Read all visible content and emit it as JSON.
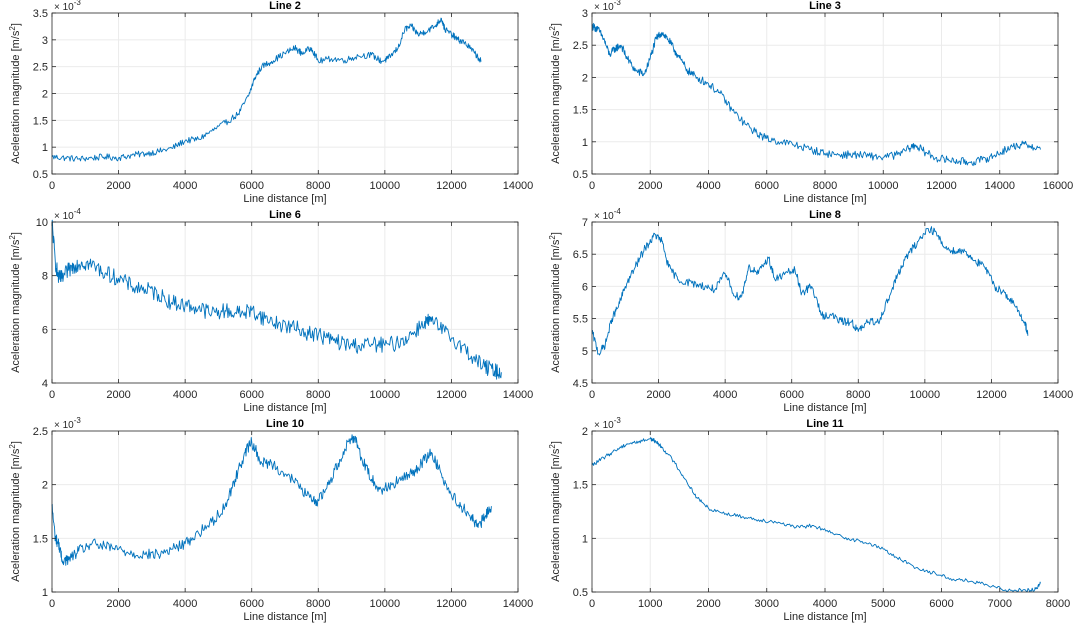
{
  "figure": {
    "background": "#ffffff",
    "line_color": "#0072BD",
    "grid_color": "#ebebeb",
    "axes_color": "#262626"
  },
  "chart_data": [
    {
      "type": "line",
      "title": "Line 2",
      "xlabel": "Line distance [m]",
      "ylabel": "Aceleration magnitude [m/s",
      "ylabel_sup": "2",
      "ylabel_close": "]",
      "exponent_base": "× 10",
      "exponent_power": "-3",
      "xlim": [
        0,
        14000
      ],
      "ylim": [
        0.5,
        3.5
      ],
      "xticks": [
        0,
        2000,
        4000,
        6000,
        8000,
        10000,
        12000,
        14000
      ],
      "yticks": [
        0.5,
        1,
        1.5,
        2,
        2.5,
        3,
        3.5
      ],
      "xtick_labels": [
        "0",
        "2000",
        "4000",
        "6000",
        "8000",
        "10000",
        "12000",
        "14000"
      ],
      "ytick_labels": [
        "0.5",
        "1",
        "1.5",
        "2",
        "2.5",
        "3",
        "3.5"
      ],
      "grid": true,
      "noise": 0.02,
      "series": [
        {
          "x": [
            0,
            400,
            800,
            1200,
            1600,
            2000,
            2400,
            2800,
            3200,
            3600,
            4000,
            4400,
            4800,
            5200,
            5600,
            5900,
            6100,
            6300,
            6600,
            7000,
            7300,
            7500,
            7800,
            8000,
            8400,
            8800,
            9200,
            9600,
            9900,
            10100,
            10400,
            10600,
            10800,
            11000,
            11200,
            11500,
            11700,
            11800,
            12000,
            12200,
            12400,
            12700,
            12900
          ],
          "y": [
            0.82,
            0.8,
            0.78,
            0.8,
            0.82,
            0.8,
            0.85,
            0.88,
            0.92,
            0.98,
            1.12,
            1.15,
            1.3,
            1.45,
            1.62,
            1.95,
            2.3,
            2.5,
            2.6,
            2.75,
            2.85,
            2.75,
            2.85,
            2.6,
            2.65,
            2.62,
            2.7,
            2.72,
            2.6,
            2.65,
            2.85,
            3.2,
            3.25,
            3.1,
            3.15,
            3.25,
            3.4,
            3.2,
            3.1,
            3.0,
            2.95,
            2.75,
            2.6
          ]
        }
      ]
    },
    {
      "type": "line",
      "title": "Line 3",
      "xlabel": "Line distance [m]",
      "ylabel": "Aceleration magnitude [m/s",
      "ylabel_sup": "2",
      "ylabel_close": "]",
      "exponent_base": "× 10",
      "exponent_power": "-3",
      "xlim": [
        0,
        16000
      ],
      "ylim": [
        0.5,
        3.0
      ],
      "xticks": [
        0,
        2000,
        4000,
        6000,
        8000,
        10000,
        12000,
        14000,
        16000
      ],
      "yticks": [
        0.5,
        1,
        1.5,
        2,
        2.5,
        3
      ],
      "xtick_labels": [
        "0",
        "2000",
        "4000",
        "6000",
        "8000",
        "10000",
        "12000",
        "14000",
        "16000"
      ],
      "ytick_labels": [
        "0.5",
        "1",
        "1.5",
        "2",
        "2.5",
        "3"
      ],
      "grid": true,
      "noise": 0.025,
      "series": [
        {
          "x": [
            0,
            200,
            400,
            600,
            800,
            1000,
            1200,
            1500,
            1800,
            2000,
            2200,
            2400,
            2600,
            2800,
            3000,
            3300,
            3600,
            4000,
            4400,
            4800,
            5200,
            5600,
            6000,
            6500,
            7000,
            7500,
            8000,
            8500,
            9000,
            9500,
            10000,
            10500,
            10900,
            11100,
            11400,
            11800,
            12200,
            12600,
            13000,
            13400,
            13800,
            14200,
            14600,
            15000,
            15400
          ],
          "y": [
            2.8,
            2.75,
            2.6,
            2.35,
            2.45,
            2.5,
            2.3,
            2.1,
            2.05,
            2.3,
            2.6,
            2.7,
            2.6,
            2.45,
            2.3,
            2.1,
            2.0,
            1.9,
            1.75,
            1.5,
            1.3,
            1.15,
            1.05,
            1.0,
            0.95,
            0.88,
            0.82,
            0.8,
            0.8,
            0.78,
            0.76,
            0.8,
            0.9,
            0.95,
            0.85,
            0.75,
            0.72,
            0.7,
            0.68,
            0.72,
            0.78,
            0.88,
            0.95,
            0.95,
            0.88
          ]
        }
      ]
    },
    {
      "type": "line",
      "title": "Line 6",
      "xlabel": "Line distance [m]",
      "ylabel": "Aceleration magnitude [m/s",
      "ylabel_sup": "2",
      "ylabel_close": "]",
      "exponent_base": "× 10",
      "exponent_power": "-4",
      "xlim": [
        0,
        14000
      ],
      "ylim": [
        4,
        10
      ],
      "xticks": [
        0,
        2000,
        4000,
        6000,
        8000,
        10000,
        12000,
        14000
      ],
      "yticks": [
        4,
        6,
        8,
        10
      ],
      "xtick_labels": [
        "0",
        "2000",
        "4000",
        "6000",
        "8000",
        "10000",
        "12000",
        "14000"
      ],
      "ytick_labels": [
        "4",
        "6",
        "8",
        "10"
      ],
      "grid": true,
      "noise": 0.05,
      "series": [
        {
          "x": [
            0,
            100,
            200,
            300,
            500,
            700,
            900,
            1200,
            1600,
            2000,
            2400,
            2800,
            3200,
            3600,
            4000,
            4400,
            4800,
            5200,
            5600,
            6000,
            6400,
            6800,
            7200,
            7600,
            8000,
            8400,
            8800,
            9200,
            9600,
            10000,
            10400,
            10800,
            11200,
            11400,
            11800,
            12200,
            12600,
            13000,
            13300,
            13500
          ],
          "y": [
            10,
            8.5,
            7.9,
            7.9,
            8.2,
            8.4,
            8.5,
            8.4,
            8.1,
            7.9,
            7.6,
            7.5,
            7.3,
            7.0,
            6.9,
            6.8,
            6.6,
            6.7,
            6.6,
            6.7,
            6.4,
            6.2,
            6.1,
            5.9,
            5.8,
            5.6,
            5.45,
            5.4,
            5.45,
            5.4,
            5.5,
            5.8,
            6.3,
            6.3,
            5.9,
            5.5,
            5.0,
            4.6,
            4.45,
            4.4
          ]
        }
      ]
    },
    {
      "type": "line",
      "title": "Line 8",
      "xlabel": "Line distance [m]",
      "ylabel": "Aceleration magnitude [m/s",
      "ylabel_sup": "2",
      "ylabel_close": "]",
      "exponent_base": "× 10",
      "exponent_power": "-4",
      "xlim": [
        0,
        14000
      ],
      "ylim": [
        4.5,
        7.0
      ],
      "xticks": [
        0,
        2000,
        4000,
        6000,
        8000,
        10000,
        12000,
        14000
      ],
      "yticks": [
        4.5,
        5,
        5.5,
        6,
        6.5,
        7
      ],
      "xtick_labels": [
        "0",
        "2000",
        "4000",
        "6000",
        "8000",
        "10000",
        "12000",
        "14000"
      ],
      "ytick_labels": [
        "4.5",
        "5",
        "5.5",
        "6",
        "6.5",
        "7"
      ],
      "grid": true,
      "noise": 0.025,
      "series": [
        {
          "x": [
            0,
            200,
            400,
            600,
            800,
            1000,
            1300,
            1600,
            1900,
            2100,
            2300,
            2600,
            3000,
            3400,
            3700,
            4000,
            4300,
            4500,
            4700,
            5000,
            5300,
            5500,
            5800,
            6100,
            6300,
            6600,
            6900,
            7200,
            7500,
            7800,
            8000,
            8300,
            8600,
            8900,
            9200,
            9500,
            9800,
            10100,
            10300,
            10600,
            10900,
            11200,
            11500,
            11800,
            12100,
            12400,
            12700,
            13000,
            13100
          ],
          "y": [
            5.3,
            4.95,
            5.1,
            5.5,
            5.7,
            6.0,
            6.3,
            6.6,
            6.8,
            6.7,
            6.3,
            6.1,
            6.05,
            6.0,
            5.95,
            6.2,
            5.85,
            5.85,
            6.3,
            6.2,
            6.45,
            6.1,
            6.2,
            6.25,
            5.9,
            6.0,
            5.55,
            5.55,
            5.45,
            5.45,
            5.3,
            5.45,
            5.45,
            5.8,
            6.2,
            6.5,
            6.7,
            6.9,
            6.85,
            6.6,
            6.55,
            6.55,
            6.4,
            6.3,
            6.0,
            5.9,
            5.7,
            5.45,
            5.25
          ]
        }
      ]
    },
    {
      "type": "line",
      "title": "Line 10",
      "xlabel": "Line distance [m]",
      "ylabel": "Aceleration magnitude [m/s",
      "ylabel_sup": "2",
      "ylabel_close": "]",
      "exponent_base": "× 10",
      "exponent_power": "-3",
      "xlim": [
        0,
        14000
      ],
      "ylim": [
        1.0,
        2.5
      ],
      "xticks": [
        0,
        2000,
        4000,
        6000,
        8000,
        10000,
        12000,
        14000
      ],
      "yticks": [
        1,
        1.5,
        2,
        2.5
      ],
      "xtick_labels": [
        "0",
        "2000",
        "4000",
        "6000",
        "8000",
        "10000",
        "12000",
        "14000"
      ],
      "ytick_labels": [
        "1",
        "1.5",
        "2",
        "2.5"
      ],
      "grid": true,
      "noise": 0.035,
      "series": [
        {
          "x": [
            0,
            100,
            200,
            300,
            500,
            800,
            1200,
            1600,
            2000,
            2400,
            2800,
            3200,
            3600,
            4000,
            4400,
            4800,
            5200,
            5500,
            5800,
            6000,
            6300,
            6600,
            7000,
            7400,
            7800,
            8000,
            8300,
            8600,
            8900,
            9100,
            9300,
            9600,
            9900,
            10200,
            10500,
            10800,
            11100,
            11400,
            11700,
            12000,
            12300,
            12600,
            12800,
            13000,
            13200
          ],
          "y": [
            1.8,
            1.5,
            1.45,
            1.3,
            1.3,
            1.38,
            1.45,
            1.42,
            1.4,
            1.36,
            1.35,
            1.35,
            1.4,
            1.45,
            1.55,
            1.65,
            1.8,
            2.05,
            2.3,
            2.4,
            2.2,
            2.2,
            2.1,
            2.0,
            1.85,
            1.85,
            2.0,
            2.2,
            2.4,
            2.45,
            2.25,
            2.05,
            1.95,
            2.0,
            2.05,
            2.1,
            2.2,
            2.3,
            2.1,
            1.9,
            1.8,
            1.7,
            1.6,
            1.7,
            1.8
          ]
        }
      ]
    },
    {
      "type": "line",
      "title": "Line 11",
      "xlabel": "Line distance [m]",
      "ylabel": "Aceleration magnitude [m/s",
      "ylabel_sup": "2",
      "ylabel_close": "]",
      "exponent_base": "× 10",
      "exponent_power": "-3",
      "xlim": [
        0,
        8000
      ],
      "ylim": [
        0.5,
        2.0
      ],
      "xticks": [
        0,
        1000,
        2000,
        3000,
        4000,
        5000,
        6000,
        7000,
        8000
      ],
      "yticks": [
        0.5,
        1,
        1.5,
        2
      ],
      "xtick_labels": [
        "0",
        "1000",
        "2000",
        "3000",
        "4000",
        "5000",
        "6000",
        "7000",
        "8000"
      ],
      "ytick_labels": [
        "0.5",
        "1",
        "1.5",
        "2"
      ],
      "grid": true,
      "noise": 0.012,
      "series": [
        {
          "x": [
            0,
            200,
            400,
            600,
            800,
            1000,
            1100,
            1200,
            1400,
            1600,
            1800,
            2000,
            2300,
            2600,
            2900,
            3200,
            3500,
            3800,
            4100,
            4400,
            4700,
            5000,
            5300,
            5600,
            5900,
            6200,
            6500,
            6800,
            7100,
            7400,
            7600,
            7700
          ],
          "y": [
            1.68,
            1.75,
            1.82,
            1.88,
            1.9,
            1.93,
            1.9,
            1.85,
            1.72,
            1.55,
            1.38,
            1.28,
            1.23,
            1.2,
            1.17,
            1.15,
            1.1,
            1.12,
            1.05,
            1.0,
            0.96,
            0.9,
            0.8,
            0.72,
            0.67,
            0.62,
            0.6,
            0.56,
            0.52,
            0.52,
            0.52,
            0.58
          ]
        }
      ]
    }
  ]
}
